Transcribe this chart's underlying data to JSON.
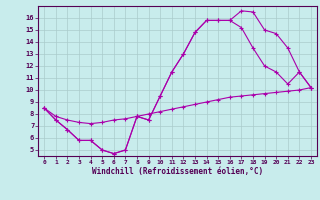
{
  "title": "",
  "xlabel": "Windchill (Refroidissement éolien,°C)",
  "ylabel": "",
  "bg_color": "#c8ecec",
  "line_color": "#aa00aa",
  "xlim": [
    -0.5,
    23.5
  ],
  "ylim": [
    4.5,
    17.0
  ],
  "xticks": [
    0,
    1,
    2,
    3,
    4,
    5,
    6,
    7,
    8,
    9,
    10,
    11,
    12,
    13,
    14,
    15,
    16,
    17,
    18,
    19,
    20,
    21,
    22,
    23
  ],
  "yticks": [
    5,
    6,
    7,
    8,
    9,
    10,
    11,
    12,
    13,
    14,
    15,
    16
  ],
  "line1_x": [
    0,
    1,
    2,
    3,
    4,
    5,
    6,
    7,
    8,
    9,
    10,
    11,
    12,
    13,
    14,
    15,
    16,
    17,
    18,
    19,
    20,
    21,
    22,
    23
  ],
  "line1_y": [
    8.5,
    7.5,
    6.7,
    5.8,
    5.8,
    5.0,
    4.7,
    5.0,
    7.8,
    7.5,
    9.5,
    11.5,
    13.0,
    14.8,
    15.8,
    15.8,
    15.8,
    16.6,
    16.5,
    15.0,
    14.7,
    13.5,
    11.5,
    10.2
  ],
  "line2_x": [
    0,
    1,
    2,
    3,
    4,
    5,
    6,
    7,
    8,
    9,
    10,
    11,
    12,
    13,
    14,
    15,
    16,
    17,
    18,
    19,
    20,
    21,
    22,
    23
  ],
  "line2_y": [
    8.5,
    7.5,
    6.7,
    5.8,
    5.8,
    5.0,
    4.7,
    5.0,
    7.8,
    7.5,
    9.5,
    11.5,
    13.0,
    14.8,
    15.8,
    15.8,
    15.8,
    15.2,
    13.5,
    12.0,
    11.5,
    10.5,
    11.5,
    10.2
  ],
  "line3_x": [
    0,
    1,
    2,
    3,
    4,
    5,
    6,
    7,
    8,
    9,
    10,
    11,
    12,
    13,
    14,
    15,
    16,
    17,
    18,
    19,
    20,
    21,
    22,
    23
  ],
  "line3_y": [
    8.5,
    7.8,
    7.5,
    7.3,
    7.2,
    7.3,
    7.5,
    7.6,
    7.8,
    8.0,
    8.2,
    8.4,
    8.6,
    8.8,
    9.0,
    9.2,
    9.4,
    9.5,
    9.6,
    9.7,
    9.8,
    9.9,
    10.0,
    10.2
  ]
}
